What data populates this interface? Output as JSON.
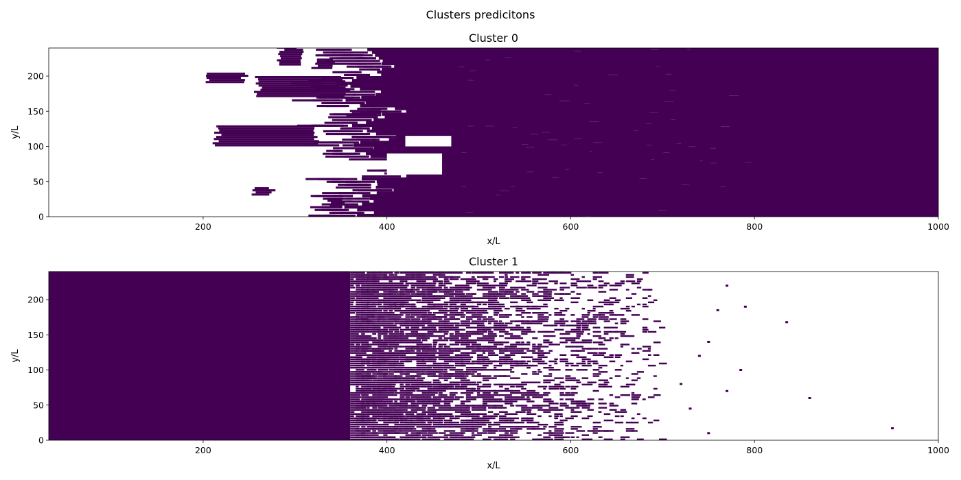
{
  "figure": {
    "suptitle": "Clusters predicitons"
  },
  "chart_data": [
    {
      "type": "heatmap",
      "title": "Cluster 0",
      "xlabel": "x/L",
      "ylabel": "y/L",
      "xlim": [
        32,
        1000
      ],
      "ylim": [
        0,
        240
      ],
      "xticks": [
        200,
        400,
        600,
        800,
        1000
      ],
      "yticks": [
        0,
        50,
        100,
        150,
        200
      ],
      "grid": false,
      "colors": {
        "filled": "#440154",
        "empty": "#ffffff"
      },
      "description_of_values": "cell filled where predicted cluster membership",
      "boundary_profile": [
        [
          0,
          375
        ],
        [
          12,
          365
        ],
        [
          25,
          380
        ],
        [
          37,
          395
        ],
        [
          50,
          375
        ],
        [
          62,
          440
        ],
        [
          75,
          445
        ],
        [
          87,
          380
        ],
        [
          100,
          370
        ],
        [
          112,
          400
        ],
        [
          125,
          370
        ],
        [
          137,
          390
        ],
        [
          150,
          410
        ],
        [
          162,
          360
        ],
        [
          175,
          400
        ],
        [
          187,
          330
        ],
        [
          200,
          380
        ],
        [
          212,
          420
        ],
        [
          225,
          375
        ],
        [
          237,
          385
        ]
      ],
      "islands": [
        {
          "x": [
            280,
            310
          ],
          "y": [
            215,
            240
          ]
        },
        {
          "x": [
            315,
            345
          ],
          "y": [
            210,
            225
          ]
        },
        {
          "x": [
            200,
            250
          ],
          "y": [
            190,
            205
          ]
        },
        {
          "x": [
            255,
            360
          ],
          "y": [
            170,
            200
          ]
        },
        {
          "x": [
            210,
            330
          ],
          "y": [
            100,
            130
          ]
        },
        {
          "x": [
            250,
            280
          ],
          "y": [
            30,
            40
          ]
        },
        {
          "x": [
            335,
            360
          ],
          "y": [
            15,
            25
          ]
        },
        {
          "x": [
            355,
            400
          ],
          "y": [
            140,
            150
          ]
        }
      ],
      "holes": [
        {
          "x": [
            400,
            460
          ],
          "y": [
            60,
            90
          ]
        },
        {
          "x": [
            420,
            470
          ],
          "y": [
            100,
            115
          ]
        }
      ]
    },
    {
      "type": "heatmap",
      "title": "Cluster 1",
      "xlabel": "x/L",
      "ylabel": "y/L",
      "xlim": [
        32,
        1000
      ],
      "ylim": [
        0,
        240
      ],
      "xticks": [
        200,
        400,
        600,
        800,
        1000
      ],
      "yticks": [
        0,
        50,
        100,
        150,
        200
      ],
      "grid": false,
      "colors": {
        "filled": "#440154",
        "empty": "#ffffff"
      },
      "description_of_values": "solid up to x≈360, fragmented 360–700, sparse points to x≈950",
      "solid_until": 360,
      "fragment_range": [
        360,
        700
      ],
      "sparse_points": [
        [
          770,
          220
        ],
        [
          790,
          190
        ],
        [
          835,
          168
        ],
        [
          760,
          185
        ],
        [
          750,
          140
        ],
        [
          740,
          120
        ],
        [
          785,
          100
        ],
        [
          770,
          70
        ],
        [
          860,
          60
        ],
        [
          950,
          17
        ],
        [
          720,
          80
        ],
        [
          730,
          45
        ],
        [
          750,
          10
        ]
      ]
    }
  ]
}
